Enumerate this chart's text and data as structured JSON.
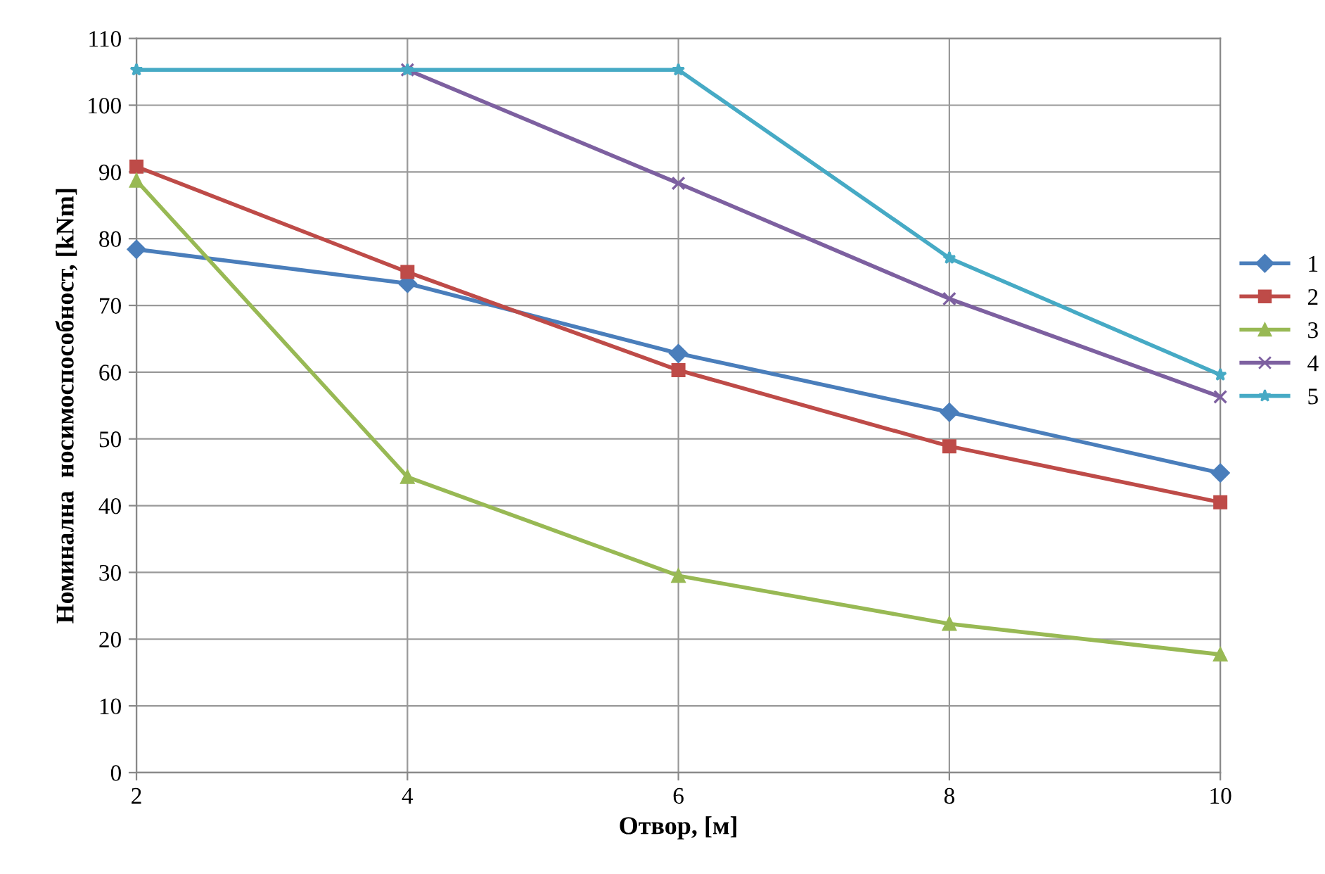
{
  "chart_data": {
    "type": "line",
    "xlabel": "Отвор, [м]",
    "ylabel": "Номинална  носимоспособност, [kNm]",
    "x": [
      2,
      4,
      6,
      8,
      10
    ],
    "series": [
      {
        "name": "1",
        "color": "#4a7ebb",
        "marker": "diamond",
        "values": [
          78.4,
          73.3,
          62.8,
          54.0,
          44.9
        ]
      },
      {
        "name": "2",
        "color": "#be4b48",
        "marker": "square",
        "values": [
          90.8,
          75.0,
          60.3,
          48.9,
          40.5
        ]
      },
      {
        "name": "3",
        "color": "#98b954",
        "marker": "triangle",
        "values": [
          88.7,
          44.3,
          29.5,
          22.3,
          17.7
        ]
      },
      {
        "name": "4",
        "color": "#7d60a0",
        "marker": "cross",
        "values": [
          null,
          105.3,
          88.3,
          71.0,
          56.3
        ]
      },
      {
        "name": "5",
        "color": "#46aac5",
        "marker": "star",
        "values": [
          105.3,
          105.3,
          105.3,
          77.1,
          59.6
        ]
      }
    ],
    "xlim": [
      2,
      10
    ],
    "xticks": [
      2,
      4,
      6,
      8,
      10
    ],
    "ylim": [
      0,
      110
    ],
    "yticks": [
      0,
      10,
      20,
      30,
      40,
      50,
      60,
      70,
      80,
      90,
      100,
      110
    ],
    "grid": true,
    "legend": "right",
    "line_style": "solid"
  }
}
